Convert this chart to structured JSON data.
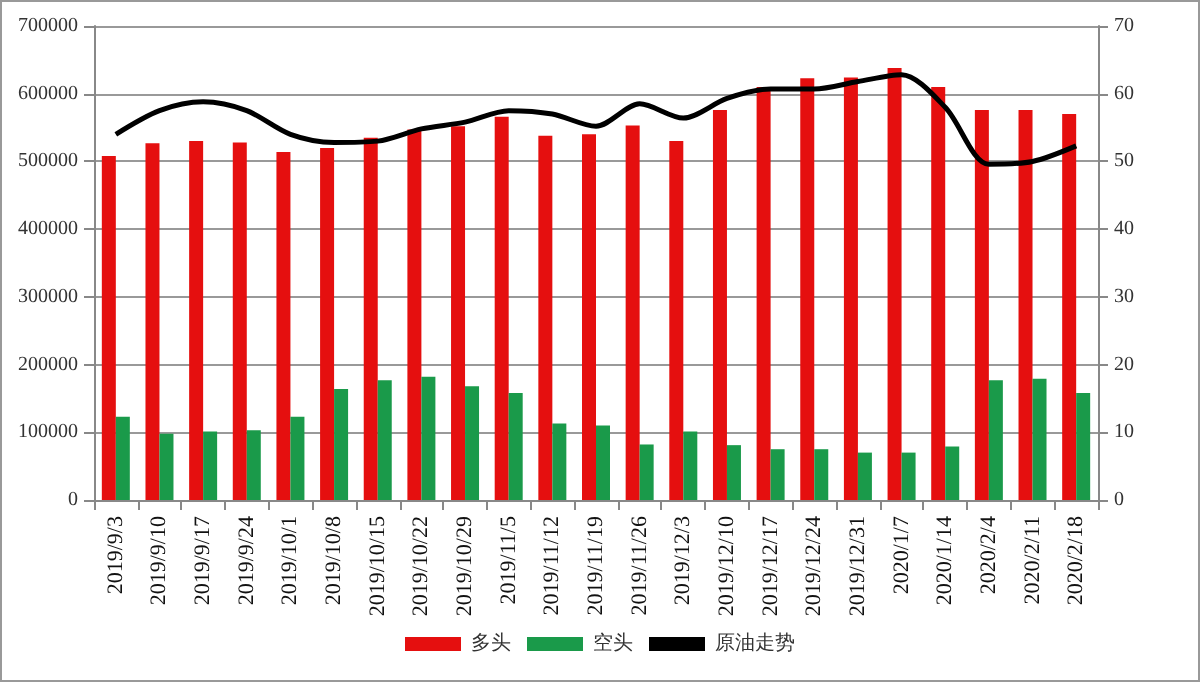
{
  "chart_data": {
    "type": "bar",
    "categories": [
      "2019/9/3",
      "2019/9/10",
      "2019/9/17",
      "2019/9/24",
      "2019/10/1",
      "2019/10/8",
      "2019/10/15",
      "2019/10/22",
      "2019/10/29",
      "2019/11/5",
      "2019/11/12",
      "2019/11/19",
      "2019/11/26",
      "2019/12/3",
      "2019/12/10",
      "2019/12/17",
      "2019/12/24",
      "2019/12/31",
      "2020/1/7",
      "2020/1/14",
      "2020/2/4",
      "2020/2/11",
      "2020/2/18"
    ],
    "series": [
      {
        "name": "多头",
        "color": "#e50f0f",
        "values": [
          508000,
          527000,
          530000,
          528000,
          514000,
          520000,
          535000,
          547000,
          552000,
          566000,
          538000,
          540000,
          553000,
          530000,
          576000,
          610000,
          623000,
          624000,
          638000,
          610000,
          576000,
          576000,
          570000
        ]
      },
      {
        "name": "空头",
        "color": "#1a9a4a",
        "values": [
          123000,
          98000,
          101000,
          103000,
          123000,
          164000,
          177000,
          182000,
          168000,
          158000,
          113000,
          110000,
          82000,
          101000,
          81000,
          75000,
          75000,
          70000,
          70000,
          79000,
          177000,
          179000,
          158000
        ]
      },
      {
        "name": "原油走势",
        "type": "line",
        "axis": "y2",
        "color": "#000000",
        "values": [
          54,
          57.5,
          58.8,
          57.5,
          54,
          52.8,
          53,
          54.8,
          55.8,
          57.5,
          57,
          55.2,
          58.5,
          56.4,
          59.3,
          60.7,
          60.7,
          61.8,
          62.8,
          58,
          49.6,
          50,
          52.3
        ]
      }
    ],
    "ylim": [
      0,
      700000
    ],
    "yticks": [
      0,
      100000,
      200000,
      300000,
      400000,
      500000,
      600000,
      700000
    ],
    "y2lim": [
      0,
      70
    ],
    "y2ticks": [
      0,
      10,
      20,
      30,
      40,
      50,
      60,
      70
    ],
    "grid": "y",
    "legend": "bottom",
    "marker": "none",
    "line_style": "solid"
  }
}
